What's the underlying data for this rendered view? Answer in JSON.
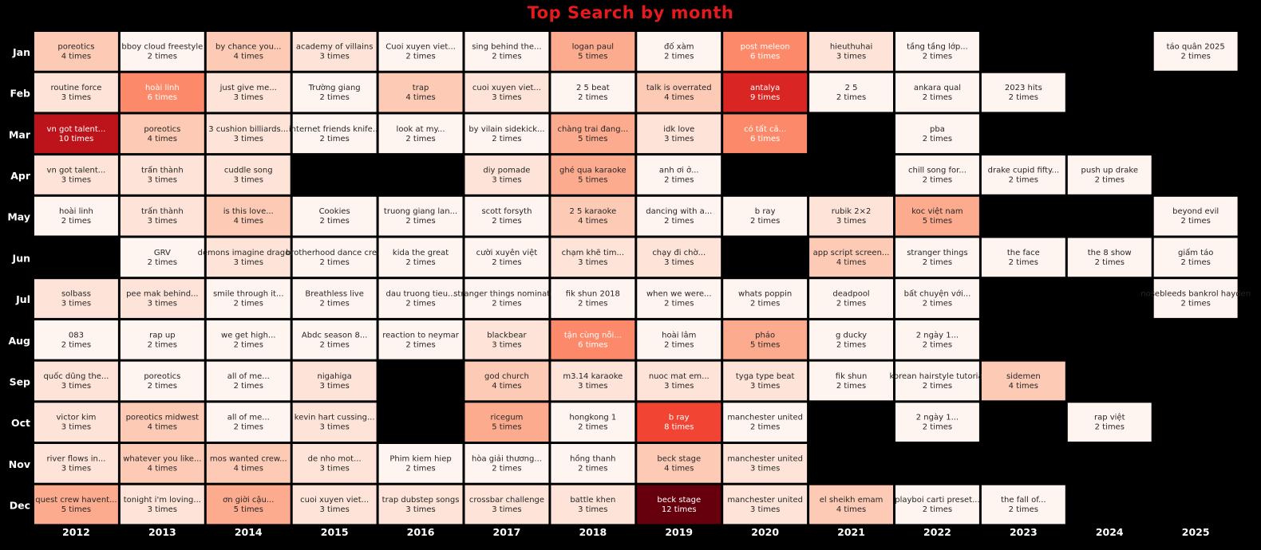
{
  "chart_data": {
    "type": "heatmap",
    "title": "Top Search by month",
    "xlabel": "",
    "ylabel": "",
    "x": [
      "2012",
      "2013",
      "2014",
      "2015",
      "2016",
      "2017",
      "2018",
      "2019",
      "2020",
      "2021",
      "2022",
      "2023",
      "2024",
      "2025"
    ],
    "y": [
      "Jan",
      "Feb",
      "Mar",
      "Apr",
      "May",
      "Jun",
      "Jul",
      "Aug",
      "Sep",
      "Oct",
      "Nov",
      "Dec"
    ],
    "count_suffix": "times",
    "color_range": [
      2,
      12
    ],
    "colors": {
      "low": "#fff5f0",
      "high": "#67000d",
      "background": "#000000",
      "title": "#e41a1c"
    },
    "cells": [
      [
        [
          "poreotics",
          4
        ],
        [
          "bboy cloud freestyle",
          2
        ],
        [
          "by chance you...",
          4
        ],
        [
          "academy of villains",
          3
        ],
        [
          "Cuoi xuyen viet...",
          2
        ],
        [
          "sing behind the...",
          2
        ],
        [
          "logan paul",
          5
        ],
        [
          "đố xàm",
          2
        ],
        [
          "post meleon",
          6
        ],
        [
          "hieuthuhai",
          3
        ],
        [
          "tầng tầng lớp...",
          2
        ],
        null,
        null,
        [
          "táo quân 2025",
          2
        ]
      ],
      [
        [
          "routine force",
          3
        ],
        [
          "hoài linh",
          6
        ],
        [
          "just give me...",
          3
        ],
        [
          "Trường giang",
          2
        ],
        [
          "trap",
          4
        ],
        [
          "cuoi xuyen viet...",
          3
        ],
        [
          "2 5 beat",
          2
        ],
        [
          "talk is overrated",
          4
        ],
        [
          "antalya",
          9
        ],
        [
          "2 5",
          2
        ],
        [
          "ankara qual",
          2
        ],
        [
          "2023 hits",
          2
        ],
        null,
        null
      ],
      [
        [
          "vn got talent...",
          10
        ],
        [
          "poreotics",
          4
        ],
        [
          "3 cushion billiards...",
          3
        ],
        [
          "internet friends knife...",
          2
        ],
        [
          "look at my...",
          2
        ],
        [
          "by vilain sidekick...",
          2
        ],
        [
          "chàng trai đang...",
          5
        ],
        [
          "idk love",
          3
        ],
        [
          "có tất cả...",
          6
        ],
        null,
        [
          "pba",
          2
        ],
        null,
        null,
        null
      ],
      [
        [
          "vn got talent...",
          3
        ],
        [
          "trấn thành",
          3
        ],
        [
          "cuddle song",
          3
        ],
        null,
        null,
        [
          "diy pomade",
          3
        ],
        [
          "ghé qua karaoke",
          5
        ],
        [
          "anh ơi ở...",
          2
        ],
        null,
        null,
        [
          "chill song for...",
          2
        ],
        [
          "drake cupid fifty...",
          2
        ],
        [
          "push up drake",
          2
        ],
        null
      ],
      [
        [
          "hoài linh",
          2
        ],
        [
          "trấn thành",
          3
        ],
        [
          "is this love...",
          4
        ],
        [
          "Cookies",
          2
        ],
        [
          "truong giang lan...",
          2
        ],
        [
          "scott forsyth",
          2
        ],
        [
          "2 5 karaoke",
          4
        ],
        [
          "dancing with a...",
          2
        ],
        [
          "b ray",
          2
        ],
        [
          "rubik 2×2",
          3
        ],
        [
          "koc việt nam",
          5
        ],
        null,
        null,
        [
          "beyond evil",
          2
        ]
      ],
      [
        null,
        [
          "GRV",
          2
        ],
        [
          "demons imagine dragons",
          3
        ],
        [
          "brotherhood dance crew",
          2
        ],
        [
          "kida the great",
          2
        ],
        [
          "cười xuyên việt",
          2
        ],
        [
          "chạm khẽ tim...",
          3
        ],
        [
          "chạy đi chờ...",
          3
        ],
        null,
        [
          "app script screen...",
          4
        ],
        [
          "stranger things",
          2
        ],
        [
          "the face",
          2
        ],
        [
          "the 8 show",
          2
        ],
        [
          "giấm táo",
          2
        ]
      ],
      [
        [
          "solbass",
          3
        ],
        [
          "pee mak behind...",
          3
        ],
        [
          "smile through it...",
          2
        ],
        [
          "Breathless live",
          2
        ],
        [
          "dau truong tieu...",
          2
        ],
        [
          "stranger things nominated",
          2
        ],
        [
          "fik shun 2018",
          2
        ],
        [
          "when we were...",
          2
        ],
        [
          "whats poppin",
          2
        ],
        [
          "deadpool",
          2
        ],
        [
          "bất chuyện với...",
          2
        ],
        null,
        null,
        [
          "nosebleeds bankrol hayden",
          2
        ]
      ],
      [
        [
          "083",
          2
        ],
        [
          "rap up",
          2
        ],
        [
          "we get high...",
          2
        ],
        [
          "Abdc season 8...",
          2
        ],
        [
          "reaction to neymar",
          2
        ],
        [
          "blackbear",
          3
        ],
        [
          "tận cùng nỗi...",
          6
        ],
        [
          "hoài lâm",
          2
        ],
        [
          "pháo",
          5
        ],
        [
          "g ducky",
          2
        ],
        [
          "2 ngày 1...",
          2
        ],
        null,
        null,
        null
      ],
      [
        [
          "quốc dũng the...",
          3
        ],
        [
          "poreotics",
          2
        ],
        [
          "all of me...",
          2
        ],
        [
          "nigahiga",
          3
        ],
        null,
        [
          "god church",
          4
        ],
        [
          "m3.14 karaoke",
          3
        ],
        [
          "nuoc mat em...",
          3
        ],
        [
          "tyga type beat",
          3
        ],
        [
          "fik shun",
          2
        ],
        [
          "korean hairstyle tutorial",
          2
        ],
        [
          "sidemen",
          4
        ],
        null,
        null
      ],
      [
        [
          "victor kim",
          3
        ],
        [
          "poreotics midwest",
          4
        ],
        [
          "all of me...",
          2
        ],
        [
          "kevin hart cussing...",
          3
        ],
        null,
        [
          "ricegum",
          5
        ],
        [
          "hongkong 1",
          2
        ],
        [
          "b ray",
          8
        ],
        [
          "manchester united",
          2
        ],
        null,
        [
          "2 ngày 1...",
          2
        ],
        null,
        [
          "rap việt",
          2
        ],
        null
      ],
      [
        [
          "river flows in...",
          3
        ],
        [
          "whatever you like...",
          4
        ],
        [
          "mos wanted crew...",
          4
        ],
        [
          "de nho mot...",
          3
        ],
        [
          "Phim kiem hiep",
          2
        ],
        [
          "hòa giải thương...",
          2
        ],
        [
          "hồng thanh",
          2
        ],
        [
          "beck stage",
          4
        ],
        [
          "manchester united",
          3
        ],
        null,
        null,
        null,
        null,
        null
      ],
      [
        [
          "quest crew havent...",
          5
        ],
        [
          "tonight i'm loving...",
          3
        ],
        [
          "ơn giời cậu...",
          5
        ],
        [
          "cuoi xuyen viet...",
          3
        ],
        [
          "trap dubstep songs",
          3
        ],
        [
          "crossbar challenge",
          3
        ],
        [
          "battle khen",
          3
        ],
        [
          "beck stage",
          12
        ],
        [
          "manchester united",
          3
        ],
        [
          "el sheikh emam",
          4
        ],
        [
          "playboi carti preset...",
          2
        ],
        [
          "the fall of...",
          2
        ],
        null,
        null
      ]
    ]
  }
}
